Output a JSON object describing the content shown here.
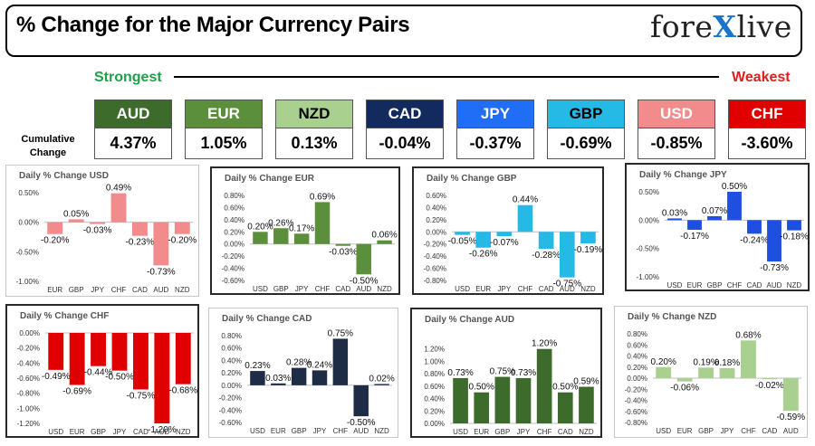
{
  "header": {
    "title": "% Change for the Major Currency Pairs",
    "logo_left": "fore",
    "logo_x": "X",
    "logo_right": "live",
    "strongest_label": "Strongest",
    "weakest_label": "Weakest",
    "cumulative_label_1": "Cumulative",
    "cumulative_label_2": "Change"
  },
  "currencies": [
    {
      "code": "AUD",
      "value": "4.37%",
      "bg": "#3d6b2c",
      "fg": "#ffffff"
    },
    {
      "code": "EUR",
      "value": "1.05%",
      "bg": "#5b8f3b",
      "fg": "#ffffff"
    },
    {
      "code": "NZD",
      "value": "0.13%",
      "bg": "#a9d08e",
      "fg": "#000000"
    },
    {
      "code": "CAD",
      "value": "-0.04%",
      "bg": "#132a5e",
      "fg": "#ffffff"
    },
    {
      "code": "JPY",
      "value": "-0.37%",
      "bg": "#1f6ef5",
      "fg": "#ffffff"
    },
    {
      "code": "GBP",
      "value": "-0.69%",
      "bg": "#25b9e6",
      "fg": "#000000"
    },
    {
      "code": "USD",
      "value": "-0.85%",
      "bg": "#f28b8b",
      "fg": "#ffffff"
    },
    {
      "code": "CHF",
      "value": "-3.60%",
      "bg": "#e00000",
      "fg": "#ffffff"
    }
  ],
  "chart_data": [
    {
      "type": "bar",
      "title": "Daily % Change USD",
      "categories": [
        "EUR",
        "GBP",
        "JPY",
        "CHF",
        "CAD",
        "AUD",
        "NZD"
      ],
      "values": [
        -0.2,
        0.05,
        -0.03,
        0.49,
        -0.23,
        -0.73,
        -0.2
      ],
      "labels": [
        "-0.20%",
        "0.05%",
        "-0.03%",
        "0.49%",
        "-0.23%",
        "-0.73%",
        "-0.20%"
      ],
      "ylim": [
        -1.0,
        0.5
      ],
      "ticks": [
        0.5,
        0.0,
        -0.5,
        -1.0
      ],
      "tick_labels": [
        "0.50%",
        "0.00%",
        "-0.50%",
        "-1.00%"
      ],
      "color": "#f28b8b"
    },
    {
      "type": "bar",
      "title": "Daily % Change EUR",
      "categories": [
        "USD",
        "GBP",
        "JPY",
        "CHF",
        "CAD",
        "AUD",
        "NZD"
      ],
      "values": [
        0.2,
        0.26,
        0.17,
        0.69,
        -0.03,
        -0.5,
        0.06
      ],
      "labels": [
        "0.20%",
        "0.26%",
        "0.17%",
        "0.69%",
        "-0.03%",
        "-0.50%",
        "0.06%"
      ],
      "ylim": [
        -0.6,
        0.8
      ],
      "ticks": [
        0.8,
        0.6,
        0.4,
        0.2,
        0.0,
        -0.2,
        -0.4,
        -0.6
      ],
      "tick_labels": [
        "0.80%",
        "0.60%",
        "0.40%",
        "0.20%",
        "0.00%",
        "-0.20%",
        "-0.40%",
        "-0.60%"
      ],
      "color": "#5b8f3b"
    },
    {
      "type": "bar",
      "title": "Daily % Change GBP",
      "categories": [
        "USD",
        "EUR",
        "JPY",
        "CHF",
        "CAD",
        "AUD",
        "NZD"
      ],
      "values": [
        -0.05,
        -0.26,
        -0.07,
        0.44,
        -0.28,
        -0.75,
        -0.19
      ],
      "labels": [
        "-0.05%",
        "-0.26%",
        "-0.07%",
        "0.44%",
        "-0.28%",
        "-0.75%",
        "-0.19%"
      ],
      "ylim": [
        -0.8,
        0.6
      ],
      "ticks": [
        0.6,
        0.4,
        0.2,
        0.0,
        -0.2,
        -0.4,
        -0.6,
        -0.8
      ],
      "tick_labels": [
        "0.60%",
        "0.40%",
        "0.20%",
        "0.00%",
        "-0.20%",
        "-0.40%",
        "-0.60%",
        "-0.80%"
      ],
      "color": "#25b9e6"
    },
    {
      "type": "bar",
      "title": "Daily % Change JPY",
      "categories": [
        "USD",
        "EUR",
        "GBP",
        "CHF",
        "CAD",
        "AUD",
        "NZD"
      ],
      "values": [
        0.03,
        -0.17,
        0.07,
        0.5,
        -0.24,
        -0.73,
        -0.18
      ],
      "labels": [
        "0.03%",
        "-0.17%",
        "0.07%",
        "0.50%",
        "-0.24%",
        "-0.73%",
        "-0.18%"
      ],
      "ylim": [
        -1.0,
        0.5
      ],
      "ticks": [
        0.5,
        0.0,
        -0.5,
        -1.0
      ],
      "tick_labels": [
        "0.50%",
        "0.00%",
        "-0.50%",
        "-1.00%"
      ],
      "color": "#1f4fe0"
    },
    {
      "type": "bar",
      "title": "Daily % Change CHF",
      "categories": [
        "USD",
        "EUR",
        "GBP",
        "JPY",
        "CAD",
        "AUD",
        "NZD"
      ],
      "values": [
        -0.49,
        -0.69,
        -0.44,
        -0.5,
        -0.75,
        -1.2,
        -0.68
      ],
      "labels": [
        "-0.49%",
        "-0.69%",
        "-0.44%",
        "-0.50%",
        "-0.75%",
        "-1.20%",
        "-0.68%"
      ],
      "ylim": [
        -1.2,
        0.0
      ],
      "ticks": [
        0.0,
        -0.2,
        -0.4,
        -0.6,
        -0.8,
        -1.0,
        -1.2
      ],
      "tick_labels": [
        "0.00%",
        "-0.20%",
        "-0.40%",
        "-0.60%",
        "-0.80%",
        "-1.00%",
        "-1.20%"
      ],
      "color": "#e00000"
    },
    {
      "type": "bar",
      "title": "Daily % Change CAD",
      "categories": [
        "USD",
        "EUR",
        "GBP",
        "JPY",
        "CHF",
        "AUD",
        "NZD"
      ],
      "values": [
        0.23,
        0.03,
        0.28,
        0.24,
        0.75,
        -0.5,
        0.02
      ],
      "labels": [
        "0.23%",
        "0.03%",
        "0.28%",
        "0.24%",
        "0.75%",
        "-0.50%",
        "0.02%"
      ],
      "ylim": [
        -0.6,
        0.8
      ],
      "ticks": [
        0.8,
        0.6,
        0.4,
        0.2,
        0.0,
        -0.2,
        -0.4,
        -0.6
      ],
      "tick_labels": [
        "0.80%",
        "0.60%",
        "0.40%",
        "0.20%",
        "0.00%",
        "-0.20%",
        "-0.40%",
        "-0.60%"
      ],
      "color": "#1e2d45"
    },
    {
      "type": "bar",
      "title": "Daily % Change AUD",
      "categories": [
        "USD",
        "EUR",
        "GBP",
        "JPY",
        "CHF",
        "CAD",
        "NZD"
      ],
      "values": [
        0.73,
        0.5,
        0.75,
        0.73,
        1.2,
        0.5,
        0.59
      ],
      "labels": [
        "0.73%",
        "0.50%",
        "0.75%",
        "0.73%",
        "1.20%",
        "0.50%",
        "0.59%"
      ],
      "ylim": [
        0.0,
        1.4
      ],
      "ticks": [
        1.4,
        1.2,
        1.0,
        0.8,
        0.6,
        0.4,
        0.2,
        0.0
      ],
      "tick_labels": [
        "",
        "1.20%",
        "1.00%",
        "0.80%",
        "0.60%",
        "0.40%",
        "0.20%",
        "0.00%"
      ],
      "color": "#3d6b2c"
    },
    {
      "type": "bar",
      "title": "Daily % Change NZD",
      "categories": [
        "USD",
        "EUR",
        "GBP",
        "JPY",
        "CHF",
        "CAD",
        "AUD"
      ],
      "values": [
        0.2,
        -0.06,
        0.19,
        0.18,
        0.68,
        -0.02,
        -0.59
      ],
      "labels": [
        "0.20%",
        "-0.06%",
        "0.19%",
        "0.18%",
        "0.68%",
        "-0.02%",
        "-0.59%"
      ],
      "ylim": [
        -0.8,
        0.8
      ],
      "ticks": [
        0.8,
        0.6,
        0.4,
        0.2,
        0.0,
        -0.2,
        -0.4,
        -0.6,
        -0.8
      ],
      "tick_labels": [
        "0.80%",
        "0.60%",
        "0.40%",
        "0.20%",
        "0.00%",
        "-0.20%",
        "-0.40%",
        "-0.60%",
        "-0.80%"
      ],
      "color": "#a9d08e"
    }
  ]
}
